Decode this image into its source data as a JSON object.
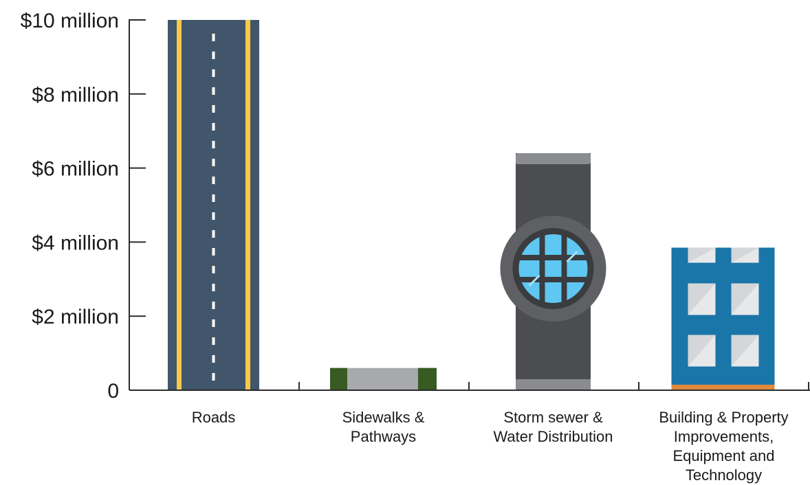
{
  "chart_data": {
    "type": "bar",
    "title": "",
    "xlabel": "",
    "ylabel": "",
    "ylim": [
      0,
      10
    ],
    "y_unit": "million dollars",
    "grid": false,
    "legend": "none",
    "y_ticks": [
      {
        "value": 0,
        "label": "0"
      },
      {
        "value": 2,
        "label": "$2 million"
      },
      {
        "value": 4,
        "label": "$4 million"
      },
      {
        "value": 6,
        "label": "$6 million"
      },
      {
        "value": 8,
        "label": "$8 million"
      },
      {
        "value": 10,
        "label": "$10 million"
      }
    ],
    "categories": [
      [
        "Roads"
      ],
      [
        "Sidewalks &",
        "Pathways"
      ],
      [
        "Storm sewer &",
        "Water Distribution"
      ],
      [
        "Building & Property",
        "Improvements,",
        "Equipment and",
        "Technology"
      ]
    ],
    "values": [
      10.0,
      0.6,
      6.4,
      3.85
    ],
    "icons": [
      "road-icon",
      "sidewalk-icon",
      "storm-pipe-icon",
      "building-icon"
    ],
    "colors": {
      "road": "#41566b",
      "road_edge_line": "#f7c948",
      "road_center_line": "#ffffff",
      "sidewalk_grass": "#385a23",
      "sidewalk_path": "#a7a9ac",
      "pipe": "#4b4d50",
      "pipe_cap": "#8a8c8f",
      "pipe_ring": "#5e6063",
      "pipe_grate": "#3a3c3f",
      "pipe_glass": "#5ec8f2",
      "building": "#1a75a8",
      "building_window": "#d4d6d9",
      "building_base": "#e08a3c",
      "axis": "#2b2b2b"
    }
  }
}
